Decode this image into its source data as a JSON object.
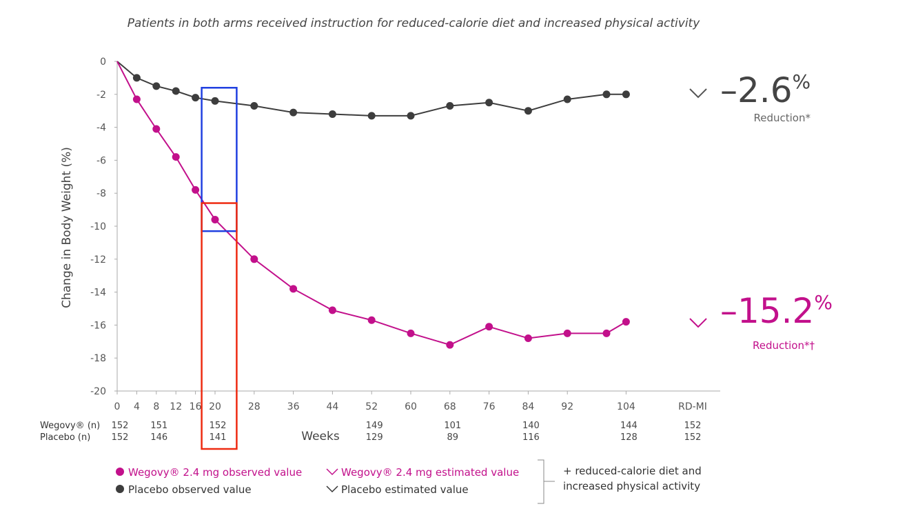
{
  "subtitle": "Patients in both arms received instruction for reduced-calorie diet and increased physical activity",
  "chart_data": {
    "type": "line",
    "ylabel": "Change in Body Weight (%)",
    "xlabel": "Weeks",
    "ylim": [
      -20,
      0
    ],
    "yticks": [
      0,
      -2,
      -4,
      -6,
      -8,
      -10,
      -12,
      -14,
      -16,
      -18,
      -20
    ],
    "xticks": [
      "0",
      "4",
      "8",
      "12",
      "16",
      "20",
      "28",
      "36",
      "44",
      "52",
      "60",
      "68",
      "76",
      "84",
      "92",
      "104",
      "RD-MI"
    ],
    "series": [
      {
        "name": "Placebo observed value",
        "color": "#3d3d3d",
        "x": [
          0,
          4,
          8,
          12,
          16,
          20,
          28,
          36,
          44,
          52,
          60,
          68,
          76,
          84,
          92,
          100,
          104
        ],
        "values": [
          0,
          -1.0,
          -1.5,
          -1.8,
          -2.2,
          -2.4,
          -2.7,
          -3.1,
          -3.2,
          -3.3,
          -3.3,
          -2.7,
          -2.5,
          -3.0,
          -2.3,
          -2.0,
          -2.0
        ]
      },
      {
        "name": "Wegovy® 2.4 mg observed value",
        "color": "#c2108b",
        "x": [
          0,
          4,
          8,
          12,
          16,
          20,
          28,
          36,
          44,
          52,
          60,
          68,
          76,
          84,
          92,
          100,
          104
        ],
        "values": [
          0,
          -2.3,
          -4.1,
          -5.8,
          -7.8,
          -9.6,
          -12.0,
          -13.8,
          -15.1,
          -15.7,
          -16.5,
          -17.2,
          -16.1,
          -16.8,
          -16.5,
          -16.5,
          -15.8
        ]
      }
    ],
    "n_table": {
      "rows": [
        {
          "label": "Wegovy® (n)",
          "entries": [
            {
              "x": "0",
              "n": "152"
            },
            {
              "x": "8",
              "n": "151"
            },
            {
              "x": "20",
              "n": "152"
            },
            {
              "x": "52",
              "n": "149"
            },
            {
              "x": "68",
              "n": "101"
            },
            {
              "x": "84",
              "n": "140"
            },
            {
              "x": "104",
              "n": "144"
            },
            {
              "x": "RD-MI",
              "n": "152"
            }
          ]
        },
        {
          "label": "Placebo (n)",
          "entries": [
            {
              "x": "0",
              "n": "152"
            },
            {
              "x": "8",
              "n": "146"
            },
            {
              "x": "20",
              "n": "141"
            },
            {
              "x": "52",
              "n": "129"
            },
            {
              "x": "68",
              "n": "89"
            },
            {
              "x": "84",
              "n": "116"
            },
            {
              "x": "104",
              "n": "128"
            },
            {
              "x": "RD-MI",
              "n": "152"
            }
          ]
        }
      ]
    },
    "highlight_boxes": [
      {
        "color": "#1f3fe0",
        "x_from": 16,
        "x_to": 24,
        "y_from": -1.6,
        "y_to": -10.3
      },
      {
        "color": "#ee2a10",
        "x_from": 16,
        "x_to": 24,
        "y_from": -8.6,
        "y_to": -20
      }
    ],
    "annotations": [
      {
        "value": "–2.6",
        "unit": "%",
        "label": "Reduction*",
        "color": "#3d3d3d"
      },
      {
        "value": "–15.2",
        "unit": "%",
        "label": "Reduction*†",
        "color": "#c2108b"
      }
    ]
  },
  "legend": {
    "wegovy_observed": "Wegovy® 2.4 mg observed value",
    "wegovy_estimated": "Wegovy® 2.4 mg estimated value",
    "placebo_observed": "Placebo observed value",
    "placebo_estimated": "Placebo estimated value",
    "note_line1": "+ reduced-calorie diet and",
    "note_line2": "increased physical activity"
  }
}
